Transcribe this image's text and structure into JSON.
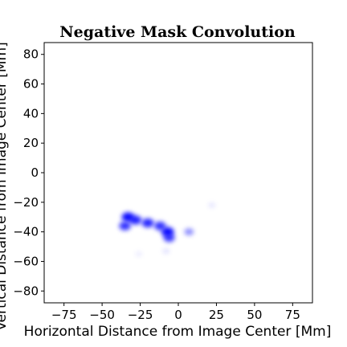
{
  "chart_data": {
    "type": "heatmap",
    "title": "Negative Mask Convolution",
    "xlabel": "Horizontal Distance from Image Center [Mm]",
    "ylabel": "Vertical Distance from Image Center [Mm]",
    "xlim": [
      -88,
      88
    ],
    "ylim": [
      -88,
      88
    ],
    "xticks": [
      -75,
      -50,
      -25,
      0,
      25,
      50,
      75
    ],
    "xtick_labels": [
      "−75",
      "−50",
      "−25",
      "0",
      "25",
      "50",
      "75"
    ],
    "yticks": [
      -80,
      -60,
      -40,
      -20,
      0,
      20,
      40,
      60,
      80
    ],
    "ytick_labels": [
      "−80",
      "−60",
      "−40",
      "−20",
      "0",
      "20",
      "40",
      "60",
      "80"
    ],
    "grid": false,
    "colormap": "white-to-blue",
    "colors": {
      "low": "#ffffff",
      "high": "#0000ff"
    },
    "blobs": [
      {
        "x": -33,
        "y": -30,
        "intensity": 0.95
      },
      {
        "x": -28,
        "y": -32,
        "intensity": 0.85
      },
      {
        "x": -35,
        "y": -36,
        "intensity": 0.8
      },
      {
        "x": -20,
        "y": -34,
        "intensity": 0.85
      },
      {
        "x": -12,
        "y": -36,
        "intensity": 0.8
      },
      {
        "x": -7,
        "y": -40,
        "intensity": 0.95
      },
      {
        "x": -6,
        "y": -44,
        "intensity": 0.75
      },
      {
        "x": 7,
        "y": -40,
        "intensity": 0.45
      },
      {
        "x": 22,
        "y": -22,
        "intensity": 0.1
      },
      {
        "x": -8,
        "y": -53,
        "intensity": 0.12
      },
      {
        "x": -26,
        "y": -55,
        "intensity": 0.08
      }
    ]
  }
}
